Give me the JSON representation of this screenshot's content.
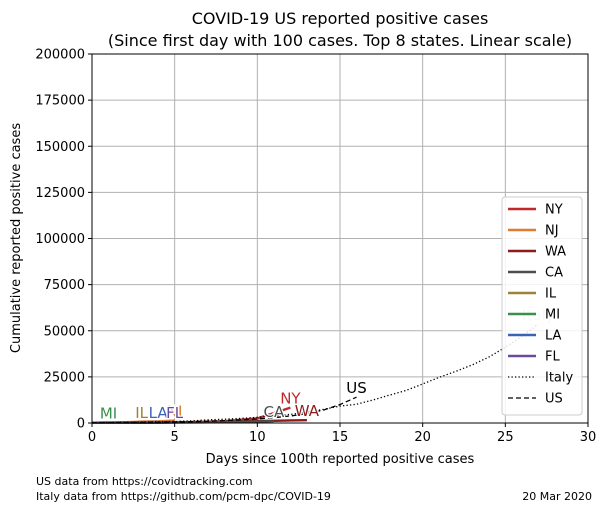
{
  "chart_data": {
    "type": "line",
    "title": "COVID-19 US reported positive cases",
    "subtitle": "(Since first day with 100 cases. Top 8 states. Linear scale)",
    "xlabel": "Days since 100th reported positive cases",
    "ylabel": "Cumulative reported positive cases",
    "xlim": [
      0,
      30
    ],
    "ylim": [
      0,
      200000
    ],
    "xticks": [
      0,
      5,
      10,
      15,
      20,
      25,
      30
    ],
    "yticks": [
      0,
      25000,
      50000,
      75000,
      100000,
      125000,
      150000,
      175000,
      200000
    ],
    "grid": true,
    "legend_position": "right",
    "series": [
      {
        "name": "NY",
        "color": "#c0282a",
        "style": "solid",
        "x": [
          0,
          1,
          2,
          3,
          4,
          5,
          6,
          7,
          8,
          9,
          10,
          11,
          12
        ],
        "y": [
          105,
          142,
          173,
          220,
          328,
          421,
          525,
          732,
          967,
          1706,
          2495,
          5365,
          8310
        ],
        "end_label": "NY"
      },
      {
        "name": "NJ",
        "color": "#e07b33",
        "style": "solid",
        "x": [
          0,
          1,
          2,
          3,
          4,
          5
        ],
        "y": [
          178,
          267,
          427,
          742,
          890,
          1327
        ],
        "end_label": "NJ"
      },
      {
        "name": "WA",
        "color": "#8e1b1b",
        "style": "solid",
        "x": [
          0,
          1,
          2,
          3,
          4,
          5,
          6,
          7,
          8,
          9,
          10,
          11,
          12,
          13
        ],
        "y": [
          102,
          122,
          136,
          162,
          267,
          366,
          442,
          568,
          642,
          904,
          1076,
          1187,
          1376,
          1524
        ],
        "end_label": "WA"
      },
      {
        "name": "CA",
        "color": "#4d4d4d",
        "style": "solid",
        "x": [
          0,
          1,
          2,
          3,
          4,
          5,
          6,
          7,
          8,
          9,
          10,
          11
        ],
        "y": [
          114,
          133,
          157,
          177,
          202,
          252,
          335,
          392,
          557,
          698,
          751,
          1063
        ],
        "end_label": "CA"
      },
      {
        "name": "IL",
        "color": "#9a8438",
        "style": "solid",
        "x": [
          0,
          1,
          2,
          3
        ],
        "y": [
          105,
          162,
          288,
          422
        ],
        "end_label": "IL"
      },
      {
        "name": "MI",
        "color": "#3b8f4c",
        "style": "solid",
        "x": [
          0,
          1
        ],
        "y": [
          110,
          336
        ],
        "end_label": "MI"
      },
      {
        "name": "LA",
        "color": "#3a63b5",
        "style": "solid",
        "x": [
          0,
          1,
          2,
          3,
          4
        ],
        "y": [
          136,
          196,
          280,
          392,
          537
        ],
        "end_label": "LA"
      },
      {
        "name": "FL",
        "color": "#6a4a9c",
        "style": "solid",
        "x": [
          0,
          1,
          2,
          3,
          4,
          5
        ],
        "y": [
          100,
          141,
          216,
          314,
          390,
          520
        ],
        "end_label": "FL"
      },
      {
        "name": "Italy",
        "color": "#000000",
        "style": "dotted",
        "x": [
          0,
          1,
          2,
          3,
          4,
          5,
          6,
          7,
          8,
          9,
          10,
          11,
          12,
          13,
          14,
          15,
          16,
          17,
          18,
          19,
          20,
          21,
          22,
          23,
          24,
          25,
          26,
          27
        ],
        "y": [
          155,
          229,
          322,
          453,
          655,
          888,
          1128,
          1694,
          2036,
          2502,
          3089,
          3858,
          4636,
          5883,
          7375,
          9172,
          10149,
          12462,
          15113,
          17660,
          21157,
          24747,
          27980,
          31506,
          35713,
          41035,
          47021,
          53578
        ],
        "end_label": "Italy"
      },
      {
        "name": "US",
        "color": "#000000",
        "style": "dashed",
        "x": [
          0,
          1,
          2,
          3,
          4,
          5,
          6,
          7,
          8,
          9,
          10,
          11,
          12,
          13,
          14,
          15,
          16
        ],
        "y": [
          125,
          160,
          220,
          300,
          400,
          520,
          700,
          950,
          1300,
          1700,
          2200,
          2900,
          3800,
          5000,
          7000,
          10000,
          14000
        ],
        "end_label": "US"
      }
    ]
  },
  "footer": {
    "source_us": "US data from https://covidtracking.com",
    "source_italy": "Italy data from https://github.com/pcm-dpc/COVID-19",
    "date": "20 Mar 2020"
  }
}
